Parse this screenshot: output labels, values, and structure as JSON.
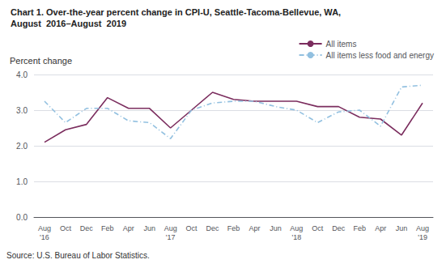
{
  "chart_data": {
    "type": "line",
    "title": "Chart 1. Over-the-year percent change in CPI-U, Seattle-Tacoma-Bellevue, WA,",
    "subtitle": "August  2016–August  2019",
    "y_label": "Percent change",
    "source": "Source: U.S. Bureau of Labor Statistics.",
    "categories": [
      "Aug\n'16",
      "Oct",
      "Dec",
      "Feb",
      "Apr",
      "Jun",
      "Aug\n'17",
      "Oct",
      "Dec",
      "Feb",
      "Apr",
      "Jun",
      "Aug\n'18",
      "Oct",
      "Dec",
      "Feb",
      "Apr",
      "Jun",
      "Aug\n'19"
    ],
    "series": [
      {
        "name": "All items",
        "color": "#7B2D5E",
        "line_style": "solid",
        "values": [
          2.1,
          2.45,
          2.6,
          3.35,
          3.05,
          3.05,
          2.5,
          3.0,
          3.5,
          3.3,
          3.25,
          3.25,
          3.25,
          3.1,
          3.1,
          2.8,
          2.75,
          2.3,
          3.2
        ]
      },
      {
        "name": "All items less food and energy",
        "color": "#92C0E0",
        "line_style": "dashdot",
        "values": [
          3.25,
          2.65,
          3.05,
          3.05,
          2.7,
          2.65,
          2.2,
          3.0,
          3.2,
          3.25,
          3.25,
          3.1,
          3.0,
          2.65,
          2.95,
          3.0,
          2.55,
          3.65,
          3.7
        ]
      }
    ],
    "ylim": [
      0.0,
      4.0
    ],
    "yticks": [
      {
        "value": 0,
        "label": "0.0"
      },
      {
        "value": 1,
        "label": "1.0"
      },
      {
        "value": 2,
        "label": "2.0"
      },
      {
        "value": 3,
        "label": "3.0"
      },
      {
        "value": 4,
        "label": "4.0"
      }
    ],
    "grid": true,
    "legend": "upper right"
  }
}
